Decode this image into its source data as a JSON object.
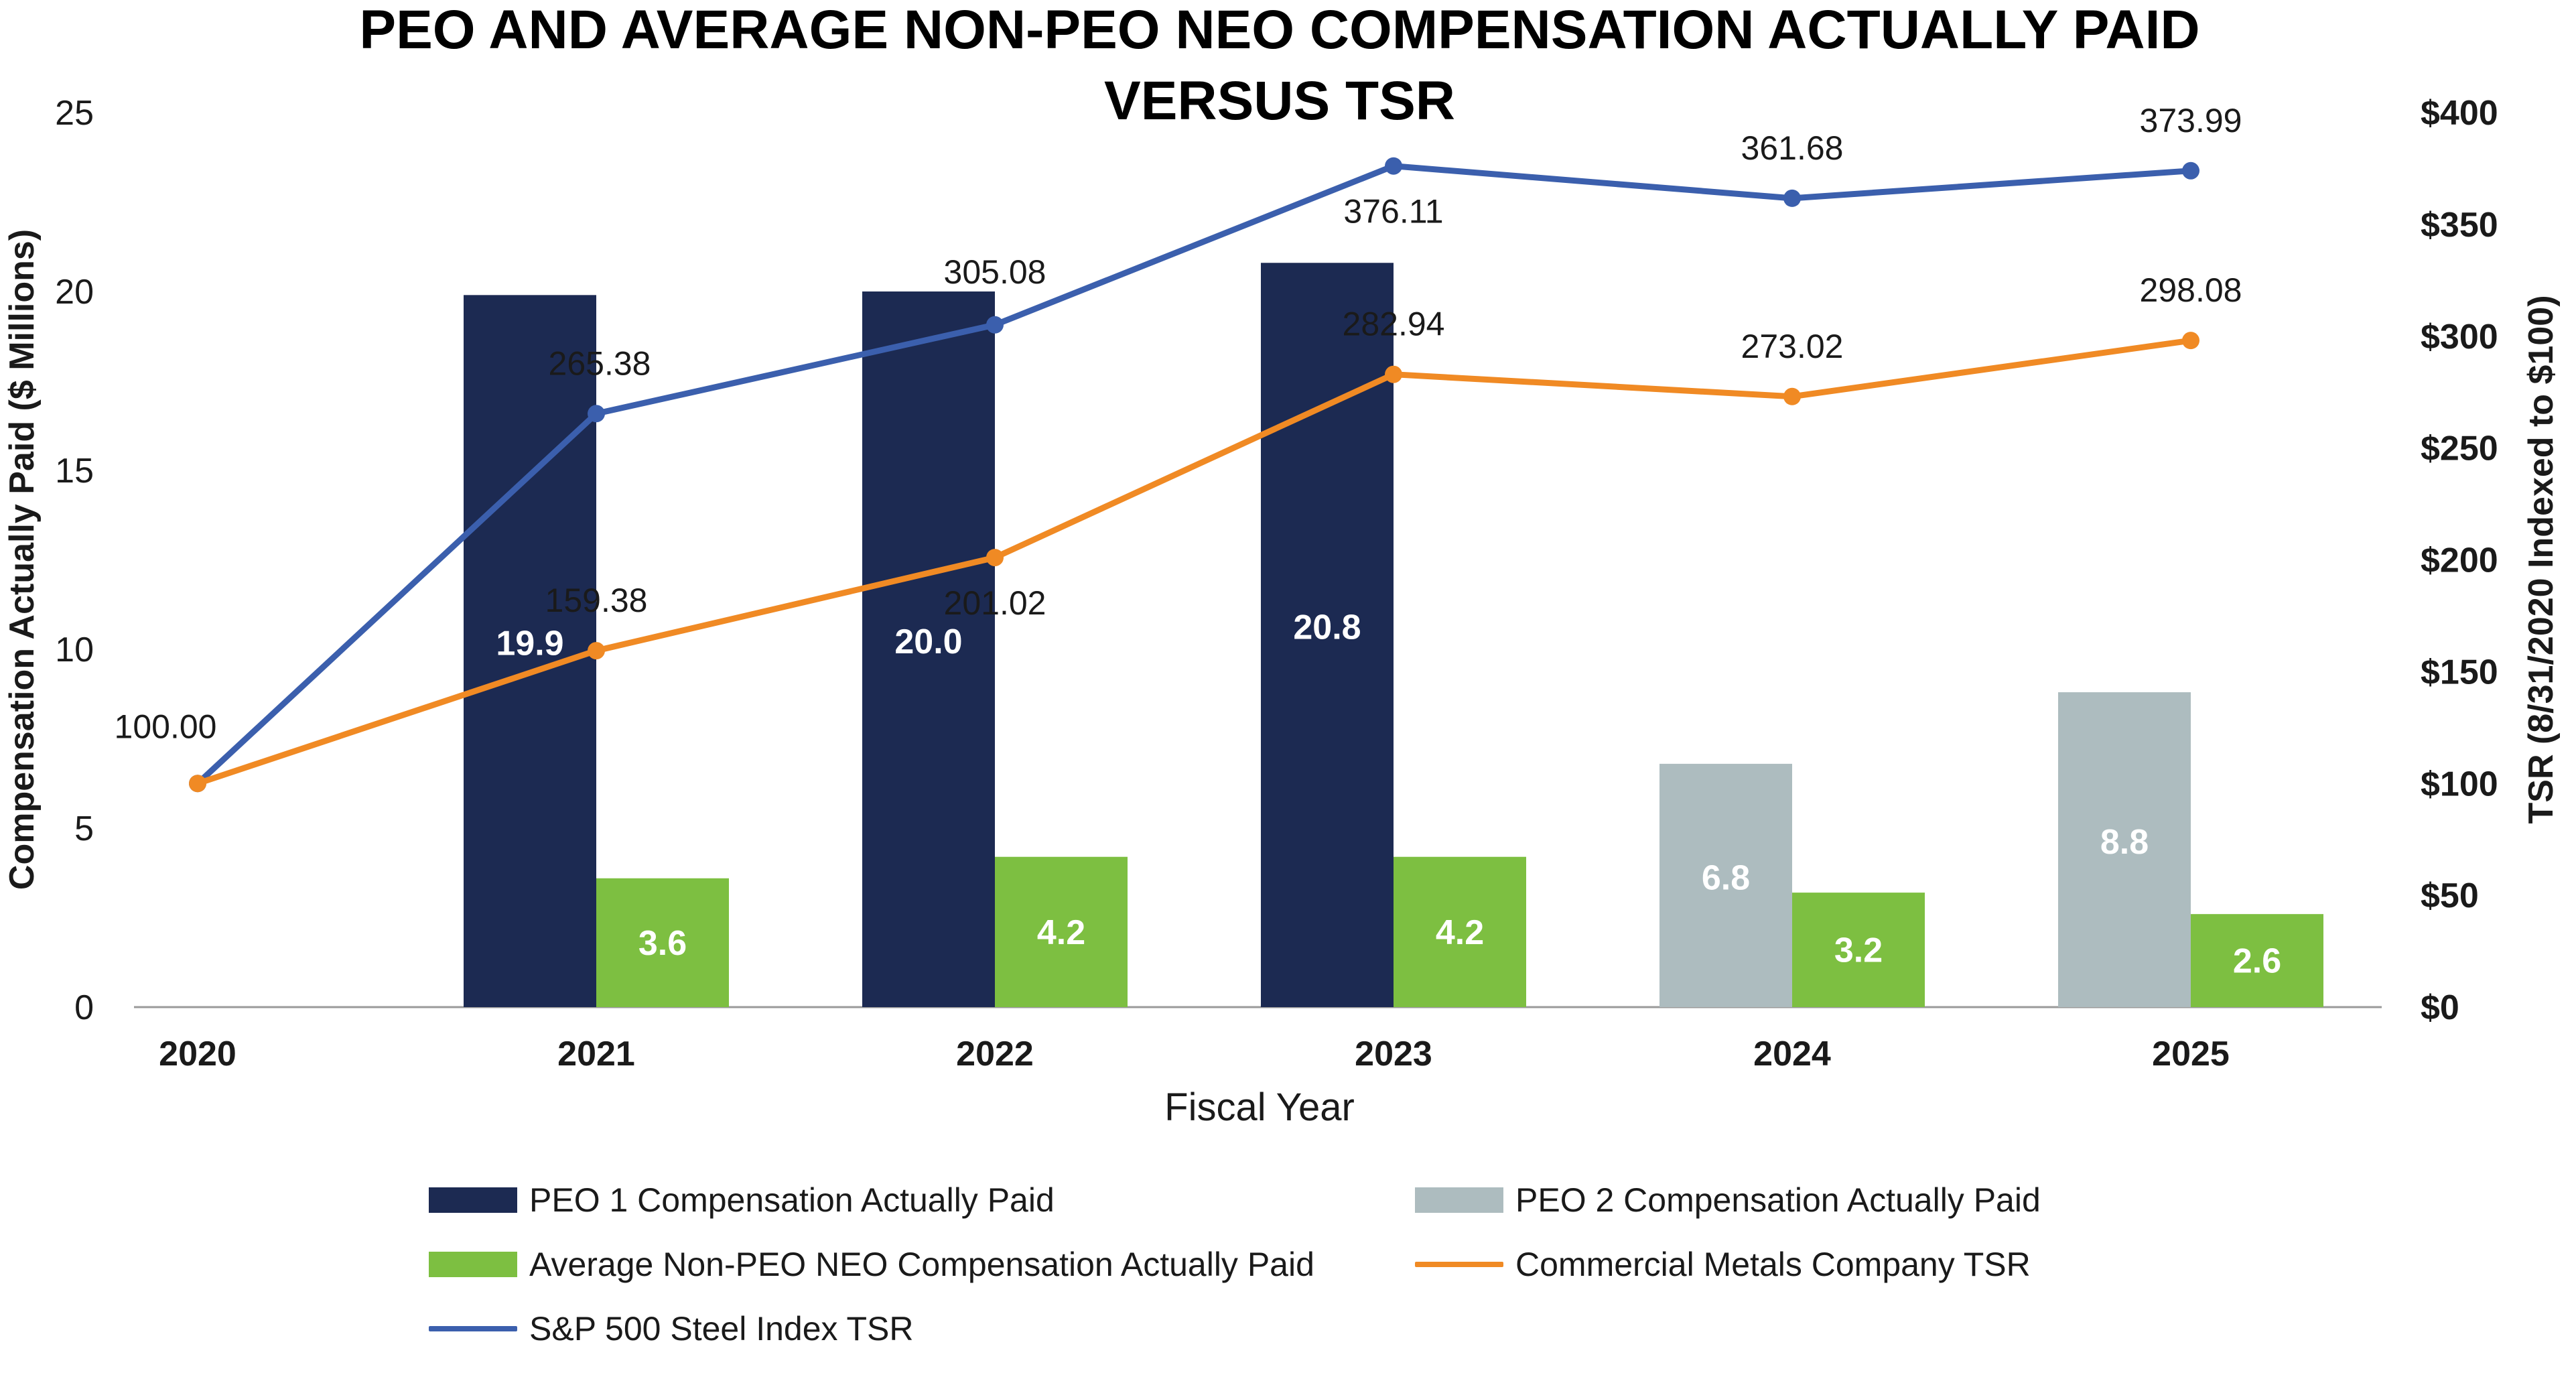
{
  "chart_data": {
    "type": "bar",
    "title": "PEO AND AVERAGE NON-PEO NEO COMPENSATION ACTUALLY PAID VERSUS TSR",
    "title_lines": [
      "PEO AND AVERAGE NON-PEO NEO COMPENSATION ACTUALLY PAID",
      "VERSUS TSR"
    ],
    "xlabel": "Fiscal Year",
    "ylabel": "Compensation Actually Paid ($ Millions)",
    "y2label": "TSR (8/31/2020 Indexed to $100)",
    "categories": [
      "2020",
      "2021",
      "2022",
      "2023",
      "2024",
      "2025"
    ],
    "ylim": [
      0,
      25
    ],
    "y_ticks": [
      "0",
      "5",
      "10",
      "15",
      "20",
      "25"
    ],
    "y2lim": [
      0,
      400
    ],
    "y2_ticks": [
      "$0",
      "$50",
      "$100",
      "$150",
      "$200",
      "$250",
      "$300",
      "$350",
      "$400"
    ],
    "grid": false,
    "legend_position": "bottom",
    "bar_series": [
      {
        "name": "PEO 1 Compensation Actually Paid",
        "color": "#1c2a52",
        "values": [
          null,
          19.9,
          20.0,
          20.8,
          null,
          null
        ],
        "labels": [
          "",
          "19.9",
          "20.0",
          "20.8",
          "",
          ""
        ]
      },
      {
        "name": "PEO 2 Compensation Actually Paid",
        "color": "#adbcbf",
        "values": [
          null,
          null,
          null,
          null,
          6.8,
          8.8
        ],
        "labels": [
          "",
          "",
          "",
          "",
          "6.8",
          "8.8"
        ]
      },
      {
        "name": "Average Non-PEO NEO Compensation Actually Paid",
        "color": "#7dbf41",
        "values": [
          null,
          3.6,
          4.2,
          4.2,
          3.2,
          2.6
        ],
        "labels": [
          "",
          "3.6",
          "4.2",
          "4.2",
          "3.2",
          "2.6"
        ]
      }
    ],
    "line_series": [
      {
        "name": "Commercial Metals Company TSR",
        "color": "#f08a24",
        "values": [
          100.0,
          159.38,
          201.02,
          282.94,
          273.02,
          298.08
        ],
        "labels": [
          "",
          "159.38",
          "201.02",
          "282.94",
          "273.02",
          "298.08"
        ]
      },
      {
        "name": "S&P 500 Steel Index TSR",
        "color": "#3b5fad",
        "values": [
          100.0,
          265.38,
          305.08,
          376.11,
          361.68,
          373.99
        ],
        "labels": [
          "100.00",
          "265.38",
          "305.08",
          "376.11",
          "361.68",
          "373.99"
        ]
      }
    ]
  },
  "legend": [
    {
      "key": "peo1",
      "label": "PEO 1 Compensation Actually Paid",
      "swatch": "bar",
      "color": "#1c2a52"
    },
    {
      "key": "peo2",
      "label": "PEO 2 Compensation Actually Paid",
      "swatch": "bar",
      "color": "#adbcbf"
    },
    {
      "key": "neo",
      "label": "Average Non-PEO NEO Compensation Actually Paid",
      "swatch": "bar",
      "color": "#7dbf41"
    },
    {
      "key": "cmc",
      "label": "Commercial Metals Company TSR",
      "swatch": "line",
      "color": "#f08a24"
    },
    {
      "key": "sp",
      "label": "S&P 500 Steel Index TSR",
      "swatch": "line",
      "color": "#3b5fad"
    }
  ]
}
